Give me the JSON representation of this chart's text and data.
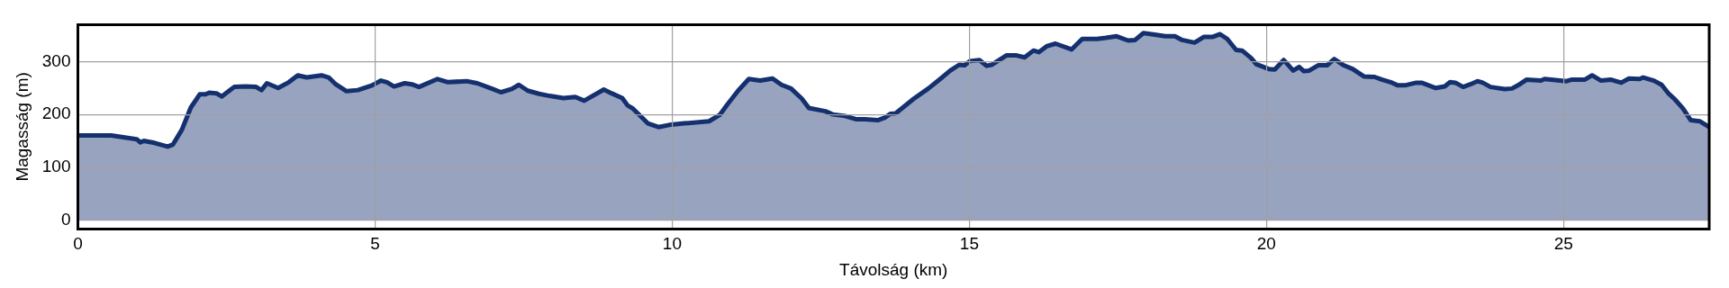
{
  "chart_data": {
    "type": "area",
    "xlabel": "Távolság (km)",
    "ylabel": "Magasság (m)",
    "color": "#14306e",
    "xlim": [
      0,
      27.45
    ],
    "ylim": [
      -17,
      370
    ],
    "xticks": [
      0,
      5,
      10,
      15,
      20,
      25
    ],
    "yticks": [
      0,
      100,
      200,
      300
    ],
    "grid": true,
    "legend": false,
    "marker": "none",
    "line_style": "solid",
    "x": [
      0,
      0.56,
      0.74,
      0.99,
      1.05,
      1.11,
      1.29,
      1.51,
      1.6,
      1.75,
      1.9,
      2.05,
      2.15,
      2.21,
      2.33,
      2.42,
      2.63,
      2.82,
      3.0,
      3.09,
      3.18,
      3.37,
      3.55,
      3.7,
      3.85,
      4.1,
      4.22,
      4.34,
      4.52,
      4.71,
      4.95,
      5.1,
      5.2,
      5.32,
      5.5,
      5.62,
      5.74,
      6.05,
      6.23,
      6.54,
      6.72,
      6.96,
      7.12,
      7.3,
      7.42,
      7.57,
      7.76,
      7.94,
      8.17,
      8.37,
      8.52,
      8.85,
      8.98,
      9.16,
      9.25,
      9.34,
      9.59,
      9.77,
      9.95,
      10.2,
      10.62,
      10.8,
      10.93,
      11.11,
      11.29,
      11.48,
      11.69,
      11.84,
      12.0,
      12.18,
      12.3,
      12.58,
      12.7,
      12.91,
      13.09,
      13.24,
      13.46,
      13.58,
      13.67,
      13.76,
      14.07,
      14.31,
      14.52,
      14.68,
      14.83,
      14.92,
      15.01,
      15.17,
      15.29,
      15.38,
      15.63,
      15.78,
      15.93,
      16.08,
      16.17,
      16.3,
      16.45,
      16.72,
      16.9,
      17.15,
      17.3,
      17.48,
      17.67,
      17.79,
      17.93,
      18.12,
      18.3,
      18.46,
      18.58,
      18.79,
      18.95,
      19.1,
      19.22,
      19.34,
      19.49,
      19.59,
      19.74,
      19.83,
      20.04,
      20.14,
      20.29,
      20.45,
      20.55,
      20.63,
      20.72,
      20.87,
      21.02,
      21.14,
      21.3,
      21.45,
      21.64,
      21.82,
      21.94,
      22.09,
      22.21,
      22.33,
      22.52,
      22.61,
      22.85,
      23.0,
      23.09,
      23.18,
      23.31,
      23.43,
      23.55,
      23.64,
      23.77,
      24.01,
      24.13,
      24.26,
      24.38,
      24.62,
      24.68,
      25.05,
      25.14,
      25.36,
      25.48,
      25.63,
      25.79,
      25.97,
      26.1,
      26.28,
      26.34,
      26.52,
      26.65,
      26.77,
      26.86,
      27.01,
      27.14,
      27.29,
      27.45
    ],
    "values": [
      160,
      160,
      157,
      153,
      147,
      150,
      146,
      139,
      143,
      171,
      213,
      238,
      238,
      241,
      240,
      234,
      252,
      253,
      252,
      246,
      259,
      250,
      261,
      274,
      270,
      274,
      270,
      257,
      244,
      246,
      255,
      264,
      261,
      253,
      259,
      257,
      252,
      267,
      261,
      263,
      259,
      249,
      242,
      248,
      256,
      245,
      239,
      235,
      231,
      233,
      226,
      247,
      240,
      231,
      217,
      211,
      183,
      176,
      180,
      183,
      187,
      199,
      219,
      245,
      267,
      264,
      268,
      256,
      249,
      230,
      212,
      206,
      200,
      197,
      191,
      191,
      189,
      194,
      201,
      202,
      230,
      249,
      268,
      283,
      294,
      293,
      301,
      303,
      292,
      294,
      312,
      312,
      308,
      321,
      318,
      329,
      334,
      323,
      343,
      343,
      345,
      348,
      340,
      341,
      354,
      351,
      348,
      348,
      341,
      336,
      347,
      347,
      352,
      343,
      322,
      321,
      307,
      295,
      286,
      285,
      303,
      283,
      290,
      282,
      283,
      293,
      293,
      305,
      293,
      286,
      272,
      271,
      266,
      261,
      255,
      255,
      260,
      260,
      250,
      253,
      261,
      260,
      252,
      257,
      263,
      260,
      252,
      248,
      249,
      257,
      266,
      264,
      267,
      263,
      266,
      266,
      274,
      264,
      266,
      260,
      268,
      267,
      270,
      264,
      256,
      239,
      230,
      211,
      189,
      187,
      176
    ]
  }
}
